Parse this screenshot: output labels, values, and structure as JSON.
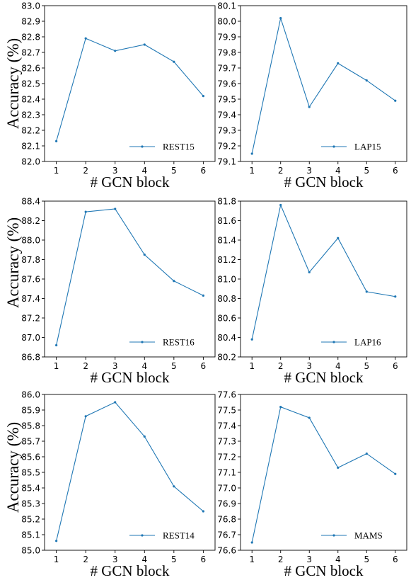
{
  "colors": {
    "line": "#1f77b4",
    "axes": "#000000"
  },
  "chart_data": [
    {
      "type": "line",
      "x": [
        1,
        2,
        3,
        4,
        5,
        6
      ],
      "series": [
        {
          "name": "REST15",
          "values": [
            82.13,
            82.79,
            82.71,
            82.75,
            82.64,
            82.42
          ]
        }
      ],
      "xlabel": "# GCN block",
      "ylabel": "Accuracy (%)",
      "ylim": [
        82.0,
        83.0
      ],
      "yticks": [
        "82.0",
        "82.1",
        "82.2",
        "82.3",
        "82.4",
        "82.5",
        "82.6",
        "82.7",
        "82.8",
        "82.9",
        "83.0"
      ],
      "xticks": [
        "1",
        "2",
        "3",
        "4",
        "5",
        "6"
      ],
      "legend": "bottom-right",
      "grid": false
    },
    {
      "type": "line",
      "x": [
        1,
        2,
        3,
        4,
        5,
        6
      ],
      "series": [
        {
          "name": "LAP15",
          "values": [
            79.15,
            80.02,
            79.45,
            79.73,
            79.62,
            79.49
          ]
        }
      ],
      "xlabel": "# GCN block",
      "ylabel": "",
      "ylim": [
        79.1,
        80.1
      ],
      "yticks": [
        "79.1",
        "79.2",
        "79.3",
        "79.4",
        "79.5",
        "79.6",
        "79.7",
        "79.8",
        "79.9",
        "80.0",
        "80.1"
      ],
      "xticks": [
        "1",
        "2",
        "3",
        "4",
        "5",
        "6"
      ],
      "legend": "bottom-right",
      "grid": false
    },
    {
      "type": "line",
      "x": [
        1,
        2,
        3,
        4,
        5,
        6
      ],
      "series": [
        {
          "name": "REST16",
          "values": [
            86.92,
            88.29,
            88.32,
            87.85,
            87.58,
            87.43
          ]
        }
      ],
      "xlabel": "# GCN block",
      "ylabel": "Accuracy (%)",
      "ylim": [
        86.8,
        88.4
      ],
      "yticks": [
        "86.8",
        "87.0",
        "87.2",
        "87.4",
        "87.6",
        "87.8",
        "88.0",
        "88.2",
        "88.4"
      ],
      "xticks": [
        "1",
        "2",
        "3",
        "4",
        "5",
        "6"
      ],
      "legend": "bottom-right",
      "grid": false
    },
    {
      "type": "line",
      "x": [
        1,
        2,
        3,
        4,
        5,
        6
      ],
      "series": [
        {
          "name": "LAP16",
          "values": [
            80.38,
            81.76,
            81.07,
            81.42,
            80.87,
            80.82
          ]
        }
      ],
      "xlabel": "# GCN block",
      "ylabel": "",
      "ylim": [
        80.2,
        81.8
      ],
      "yticks": [
        "80.2",
        "80.4",
        "80.6",
        "80.8",
        "81.0",
        "81.2",
        "81.4",
        "81.6",
        "81.8"
      ],
      "xticks": [
        "1",
        "2",
        "3",
        "4",
        "5",
        "6"
      ],
      "legend": "bottom-right",
      "grid": false
    },
    {
      "type": "line",
      "x": [
        1,
        2,
        3,
        4,
        5,
        6
      ],
      "series": [
        {
          "name": "REST14",
          "values": [
            85.06,
            85.86,
            85.95,
            85.73,
            85.41,
            85.25
          ]
        }
      ],
      "xlabel": "# GCN block",
      "ylabel": "Accuracy (%)",
      "ylim": [
        85.0,
        86.0
      ],
      "yticks": [
        "85.0",
        "85.1",
        "85.2",
        "85.3",
        "85.4",
        "85.5",
        "85.6",
        "85.7",
        "85.8",
        "85.9",
        "86.0"
      ],
      "xticks": [
        "1",
        "2",
        "3",
        "4",
        "5",
        "6"
      ],
      "legend": "bottom-right",
      "grid": false
    },
    {
      "type": "line",
      "x": [
        1,
        2,
        3,
        4,
        5,
        6
      ],
      "series": [
        {
          "name": "MAMS",
          "values": [
            76.65,
            77.52,
            77.45,
            77.13,
            77.22,
            77.09
          ]
        }
      ],
      "xlabel": "# GCN block",
      "ylabel": "",
      "ylim": [
        76.6,
        77.6
      ],
      "yticks": [
        "76.6",
        "76.7",
        "76.8",
        "76.9",
        "77.0",
        "77.1",
        "77.2",
        "77.3",
        "77.4",
        "77.5",
        "77.6"
      ],
      "xticks": [
        "1",
        "2",
        "3",
        "4",
        "5",
        "6"
      ],
      "legend": "bottom-right",
      "grid": false
    }
  ]
}
